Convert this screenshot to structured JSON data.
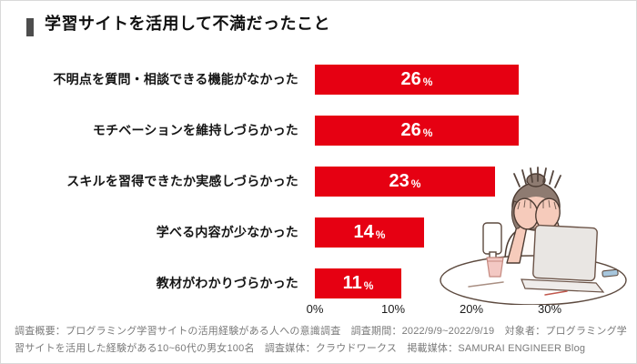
{
  "header": {
    "title": "学習サイトを活用して不満だったこと"
  },
  "chart_data": {
    "type": "bar",
    "orientation": "horizontal",
    "title": "学習サイトを活用して不満だったこと",
    "categories": [
      "不明点を質問・相談できる機能がなかった",
      "モチベーションを維持しづらかった",
      "スキルを習得できたか実感しづらかった",
      "学べる内容が少なかった",
      "教材がわかりづらかった"
    ],
    "values": [
      26,
      26,
      23,
      14,
      11
    ],
    "value_suffix": "%",
    "x_ticks": [
      {
        "label": "0%",
        "value": 0
      },
      {
        "label": "10%",
        "value": 10
      },
      {
        "label": "20%",
        "value": 20
      },
      {
        "label": "30%",
        "value": 30
      }
    ],
    "xlim": [
      0,
      32
    ],
    "xlabel": "",
    "ylabel": "",
    "grid": false,
    "legend": "none",
    "bar_color": "#e60012",
    "value_label_color": "#ffffff"
  },
  "illustration": {
    "icon": "frustrated-person-at-laptop-illustration"
  },
  "footer": {
    "note": "調査概要：プログラミング学習サイトの活用経験がある人への意識調査　調査期間：2022/9/9~2022/9/19　対象者：プログラミング学習サイトを活用した経験がある10~60代の男女100名　調査媒体：クラウドワークス　掲載媒体：SAMURAI ENGINEER Blog"
  },
  "colors": {
    "bar": "#e60012",
    "title_marker": "#4d4d4d",
    "text": "#1a1a1a",
    "footer_text": "#7a7a7a",
    "border": "#d9d9d9"
  }
}
